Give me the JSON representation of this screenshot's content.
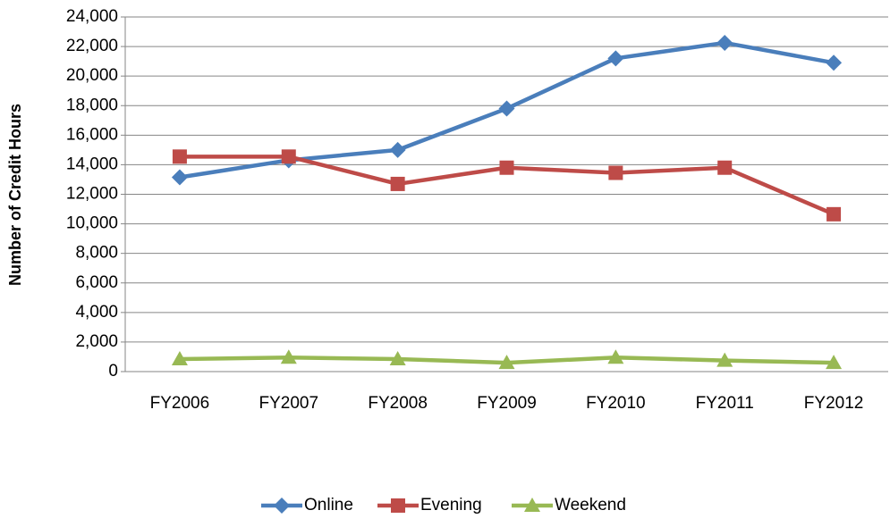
{
  "chart_data": {
    "type": "line",
    "y_axis_label": "Number of Credit Hours",
    "categories": [
      "FY2006",
      "FY2007",
      "FY2008",
      "FY2009",
      "FY2010",
      "FY2011",
      "FY2012"
    ],
    "series": [
      {
        "name": "Online",
        "color": "#4a7ebb",
        "marker": "diamond",
        "values": [
          13150,
          14300,
          15000,
          17800,
          21200,
          22250,
          20900
        ]
      },
      {
        "name": "Evening",
        "color": "#be4b48",
        "marker": "square",
        "values": [
          14550,
          14550,
          12700,
          13800,
          13450,
          13800,
          10650
        ]
      },
      {
        "name": "Weekend",
        "color": "#98b954",
        "marker": "triangle",
        "values": [
          850,
          950,
          850,
          600,
          950,
          750,
          600
        ]
      }
    ],
    "ylim": [
      0,
      24000
    ],
    "yticks": [
      0,
      {
        "value": 2000,
        "label": "2,000"
      },
      {
        "value": 4000,
        "label": "4,000"
      },
      {
        "value": 6000,
        "label": "6,000"
      },
      {
        "value": 8000,
        "label": "8,000"
      },
      {
        "value": 10000,
        "label": "10,000"
      },
      {
        "value": 12000,
        "label": "12,000"
      },
      {
        "value": 14000,
        "label": "14,000"
      },
      {
        "value": 16000,
        "label": "16,000"
      },
      {
        "value": 18000,
        "label": "18,000"
      },
      {
        "value": 20000,
        "label": "20,000"
      },
      {
        "value": 22000,
        "label": "22,000"
      },
      {
        "value": 24000,
        "label": "24,000"
      }
    ],
    "grid": true,
    "legend": "bottom"
  }
}
